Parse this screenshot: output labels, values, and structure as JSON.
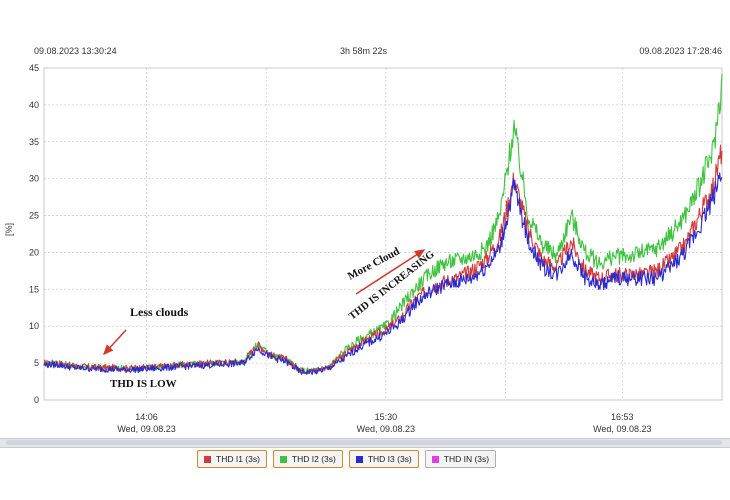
{
  "header": {
    "start_time": "09.08.2023 13:30:24",
    "duration": "3h 58m 22s",
    "end_time": "09.08.2023 17:28:46"
  },
  "colors": {
    "thd_i1": "#d03a3a",
    "thd_i2": "#3fc23f",
    "thd_i3": "#2b2bd0",
    "thd_in": "#e040e0",
    "grid": "#cfcfcf",
    "annotation_arrow": "#d03a2a"
  },
  "chart_data": {
    "type": "line",
    "title": "",
    "xlabel": "",
    "ylabel": "[%]",
    "ylim": [
      0,
      45
    ],
    "yticks": [
      0,
      5,
      10,
      15,
      20,
      25,
      30,
      35,
      40,
      45
    ],
    "grid": true,
    "legend_position": "bottom",
    "x_range": [
      "13:30:24",
      "17:28:46"
    ],
    "xticks": [
      {
        "time": "14:06",
        "date": "Wed, 09.08.23",
        "minute": 36
      },
      {
        "time": "15:30",
        "date": "Wed, 09.08.23",
        "minute": 120
      },
      {
        "time": "16:53",
        "date": "Wed, 09.08.23",
        "minute": 203
      }
    ],
    "x_minutes": [
      0,
      5,
      10,
      20,
      30,
      40,
      50,
      60,
      70,
      75,
      80,
      85,
      90,
      95,
      100,
      105,
      110,
      115,
      120,
      125,
      130,
      135,
      140,
      145,
      150,
      155,
      160,
      165,
      170,
      175,
      180,
      185,
      190,
      195,
      200,
      205,
      210,
      215,
      220,
      225,
      230,
      235,
      238
    ],
    "series": [
      {
        "name": "THD I1 (3s)",
        "values": [
          5,
          5,
          4.6,
          4.4,
          4.3,
          4.5,
          4.8,
          5,
          5.2,
          7.5,
          6,
          5.5,
          4,
          4,
          4.5,
          6,
          7.5,
          8.5,
          9.5,
          11,
          13.5,
          15,
          16,
          16.5,
          17.5,
          19,
          22,
          30,
          23,
          19,
          18,
          21.5,
          17.5,
          16.5,
          17,
          17,
          17,
          17.5,
          19,
          21,
          25,
          29,
          34
        ]
      },
      {
        "name": "THD I2 (3s)",
        "values": [
          5,
          5,
          4.6,
          4.4,
          4.3,
          4.5,
          4.8,
          5,
          5.2,
          7.5,
          6,
          5.5,
          4,
          4,
          4.5,
          6.5,
          8,
          9,
          10,
          12.5,
          15,
          17,
          18.5,
          19,
          19.5,
          20.5,
          25,
          37,
          25,
          21,
          19.5,
          25,
          20,
          18.5,
          19.5,
          19.5,
          20,
          20.5,
          22.5,
          25,
          29,
          34,
          43
        ]
      },
      {
        "name": "THD I3 (3s)",
        "values": [
          4.8,
          4.8,
          4.4,
          4.2,
          4.1,
          4.3,
          4.6,
          4.8,
          5,
          7,
          5.8,
          5.2,
          3.8,
          3.8,
          4.3,
          5.5,
          7,
          8,
          9,
          10.5,
          13,
          14.5,
          15.5,
          16,
          16.5,
          18,
          20.5,
          29,
          21.5,
          18,
          17,
          20,
          16.5,
          15.5,
          16.5,
          16.5,
          16.5,
          16.5,
          18,
          20,
          23.5,
          27.5,
          31.5
        ]
      },
      {
        "name": "THD IN (3s)",
        "values": []
      }
    ],
    "annotations": [
      {
        "text": "Less clouds"
      },
      {
        "text": "THD IS LOW"
      },
      {
        "text": "More Cloud"
      },
      {
        "text": "THD IS INCREASING"
      }
    ]
  }
}
